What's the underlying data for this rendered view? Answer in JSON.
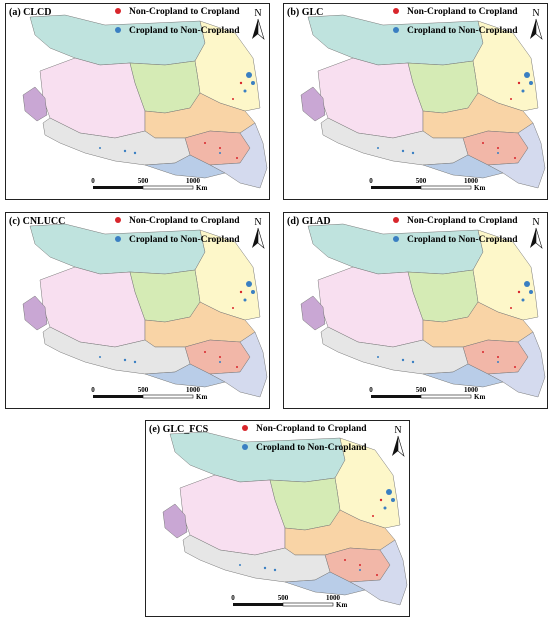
{
  "panels": [
    {
      "label": "(a) CLCD",
      "legend": [
        "Non-Cropland to Cropland",
        "Cropland to Non-Cropland"
      ],
      "north": "N",
      "scale": [
        "0",
        "500",
        "1000",
        "Km"
      ]
    },
    {
      "label": "(b) GLC",
      "legend": [
        "Non-Cropland to Cropland",
        "Cropland to Non-Cropland"
      ],
      "north": "N",
      "scale": [
        "0",
        "500",
        "1000",
        "Km"
      ]
    },
    {
      "label": "(c) CNLUCC",
      "legend": [
        "Non-Cropland to Cropland",
        "Cropland to Non-Cropland"
      ],
      "north": "N",
      "scale": [
        "0",
        "500",
        "1000",
        "Km"
      ]
    },
    {
      "label": "(d) GLAD",
      "legend": [
        "Non-Cropland to Cropland",
        "Cropland to Non-Cropland"
      ],
      "north": "N",
      "scale": [
        "0",
        "500",
        "1000",
        "Km"
      ]
    },
    {
      "label": "(e) GLC_FCS",
      "legend": [
        "Non-Cropland to Cropland",
        "Cropland to Non-Cropland"
      ],
      "north": "N",
      "scale": [
        "0",
        "500",
        "1000",
        "Km"
      ]
    }
  ]
}
